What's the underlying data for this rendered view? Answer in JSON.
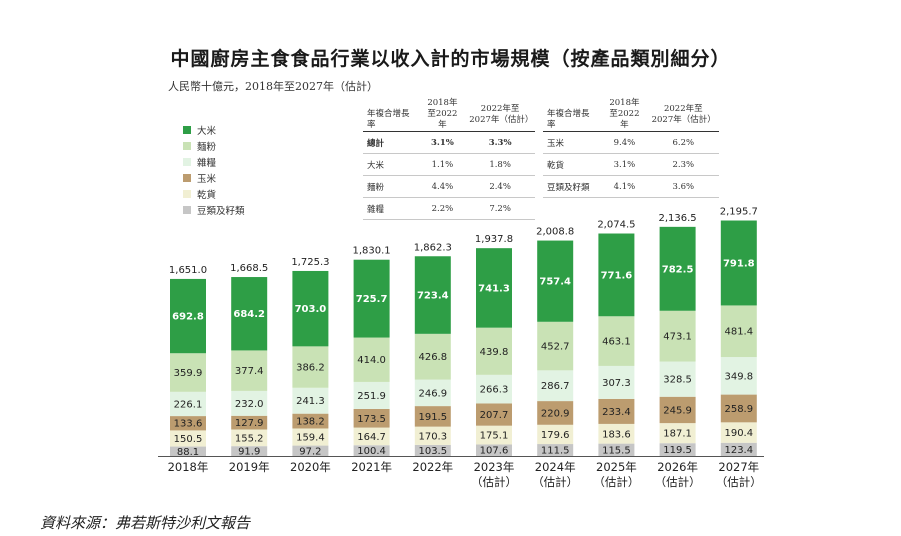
{
  "title": "中國廚房主食食品行業以收入計的市場規模（按產品類別細分）",
  "subtitle": "人民幣十億元，2018年至2027年（估計）",
  "source": "資料來源：弗若斯特沙利文報告",
  "cagr_table_left": {
    "headers": [
      "年複合增長率",
      "2018年\n至2022年",
      "2022年至\n2027年（估計）"
    ],
    "rows": [
      [
        "總計",
        "3.1%",
        "3.3%"
      ],
      [
        "大米",
        "1.1%",
        "1.8%"
      ],
      [
        "麵粉",
        "4.4%",
        "2.4%"
      ],
      [
        "雜糧",
        "2.2%",
        "7.2%"
      ]
    ]
  },
  "cagr_table_right": {
    "headers": [
      "年複合增長率",
      "2018年\n至2022年",
      "2022年至\n2027年（估計）"
    ],
    "rows": [
      [
        "玉米",
        "9.4%",
        "6.2%"
      ],
      [
        "乾貨",
        "3.1%",
        "2.3%"
      ],
      [
        "豆類及籽類",
        "4.1%",
        "3.6%"
      ]
    ]
  },
  "chart_data": {
    "type": "bar",
    "stacked": true,
    "title": "中國廚房主食食品行業以收入計的市場規模（按產品類別細分）",
    "ylabel": "人民幣十億元",
    "categories": [
      "2018年",
      "2019年",
      "2020年",
      "2021年",
      "2022年",
      "2023年",
      "2024年",
      "2025年",
      "2026年",
      "2027年"
    ],
    "category_notes": [
      "",
      "",
      "",
      "",
      "",
      "（估計）",
      "（估計）",
      "（估計）",
      "（估計）",
      "（估計）"
    ],
    "totals": [
      "1,651.0",
      "1,668.5",
      "1,725.3",
      "1,830.1",
      "1,862.3",
      "1,937.8",
      "2,008.8",
      "2,074.5",
      "2,136.5",
      "2,195.7"
    ],
    "total_values": [
      1651.0,
      1668.5,
      1725.3,
      1830.1,
      1862.3,
      1937.8,
      2008.8,
      2074.5,
      2136.5,
      2195.7
    ],
    "ylim": [
      0,
      2200
    ],
    "series": [
      {
        "name": "豆類及籽類",
        "color": "#c6c6c6",
        "label_color": "#222222",
        "values": [
          88.1,
          91.9,
          97.2,
          100.4,
          103.5,
          107.6,
          111.5,
          115.5,
          119.5,
          123.4
        ]
      },
      {
        "name": "乾貨",
        "color": "#f1efd3",
        "label_color": "#222222",
        "values": [
          150.5,
          155.2,
          159.4,
          164.7,
          170.3,
          175.1,
          179.6,
          183.6,
          187.1,
          190.4
        ]
      },
      {
        "name": "玉米",
        "color": "#bc9c6f",
        "label_color": "#222222",
        "values": [
          133.6,
          127.9,
          138.2,
          173.5,
          191.5,
          207.7,
          220.9,
          233.4,
          245.9,
          258.9
        ]
      },
      {
        "name": "雜糧",
        "color": "#e2f3e3",
        "label_color": "#222222",
        "values": [
          226.1,
          232.0,
          241.3,
          251.9,
          246.9,
          266.3,
          286.7,
          307.3,
          328.5,
          349.8
        ]
      },
      {
        "name": "麵粉",
        "color": "#c9e2b5",
        "label_color": "#222222",
        "values": [
          359.9,
          377.4,
          386.2,
          414.0,
          426.8,
          439.8,
          452.7,
          463.1,
          473.1,
          481.4
        ]
      },
      {
        "name": "大米",
        "color": "#2e9e46",
        "label_color": "#ffffff",
        "values": [
          692.8,
          684.2,
          703.0,
          725.7,
          723.4,
          741.3,
          757.4,
          771.6,
          782.5,
          791.8
        ]
      }
    ],
    "legend": [
      "大米",
      "麵粉",
      "雜糧",
      "玉米",
      "乾貨",
      "豆類及籽類"
    ],
    "legend_position": "top-left"
  }
}
